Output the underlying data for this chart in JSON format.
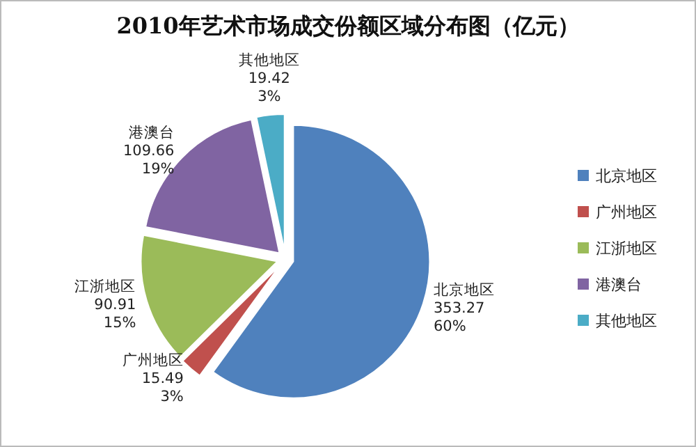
{
  "chart_data": {
    "type": "pie",
    "title": "2010年艺术市场成交份额区域分布图（亿元）",
    "categories": [
      "北京地区",
      "广州地区",
      "江浙地区",
      "港澳台",
      "其他地区"
    ],
    "values": [
      353.27,
      15.49,
      90.91,
      109.66,
      19.42
    ],
    "value_labels": [
      "353.27\n60%",
      "15.49\n3%",
      "90.91\n15%",
      "109.66\n19%",
      "19.42\n3%"
    ],
    "colors": [
      "#4f81bd",
      "#c0504d",
      "#9bbb59",
      "#8064a2",
      "#4bacc6"
    ],
    "legend": "right"
  }
}
